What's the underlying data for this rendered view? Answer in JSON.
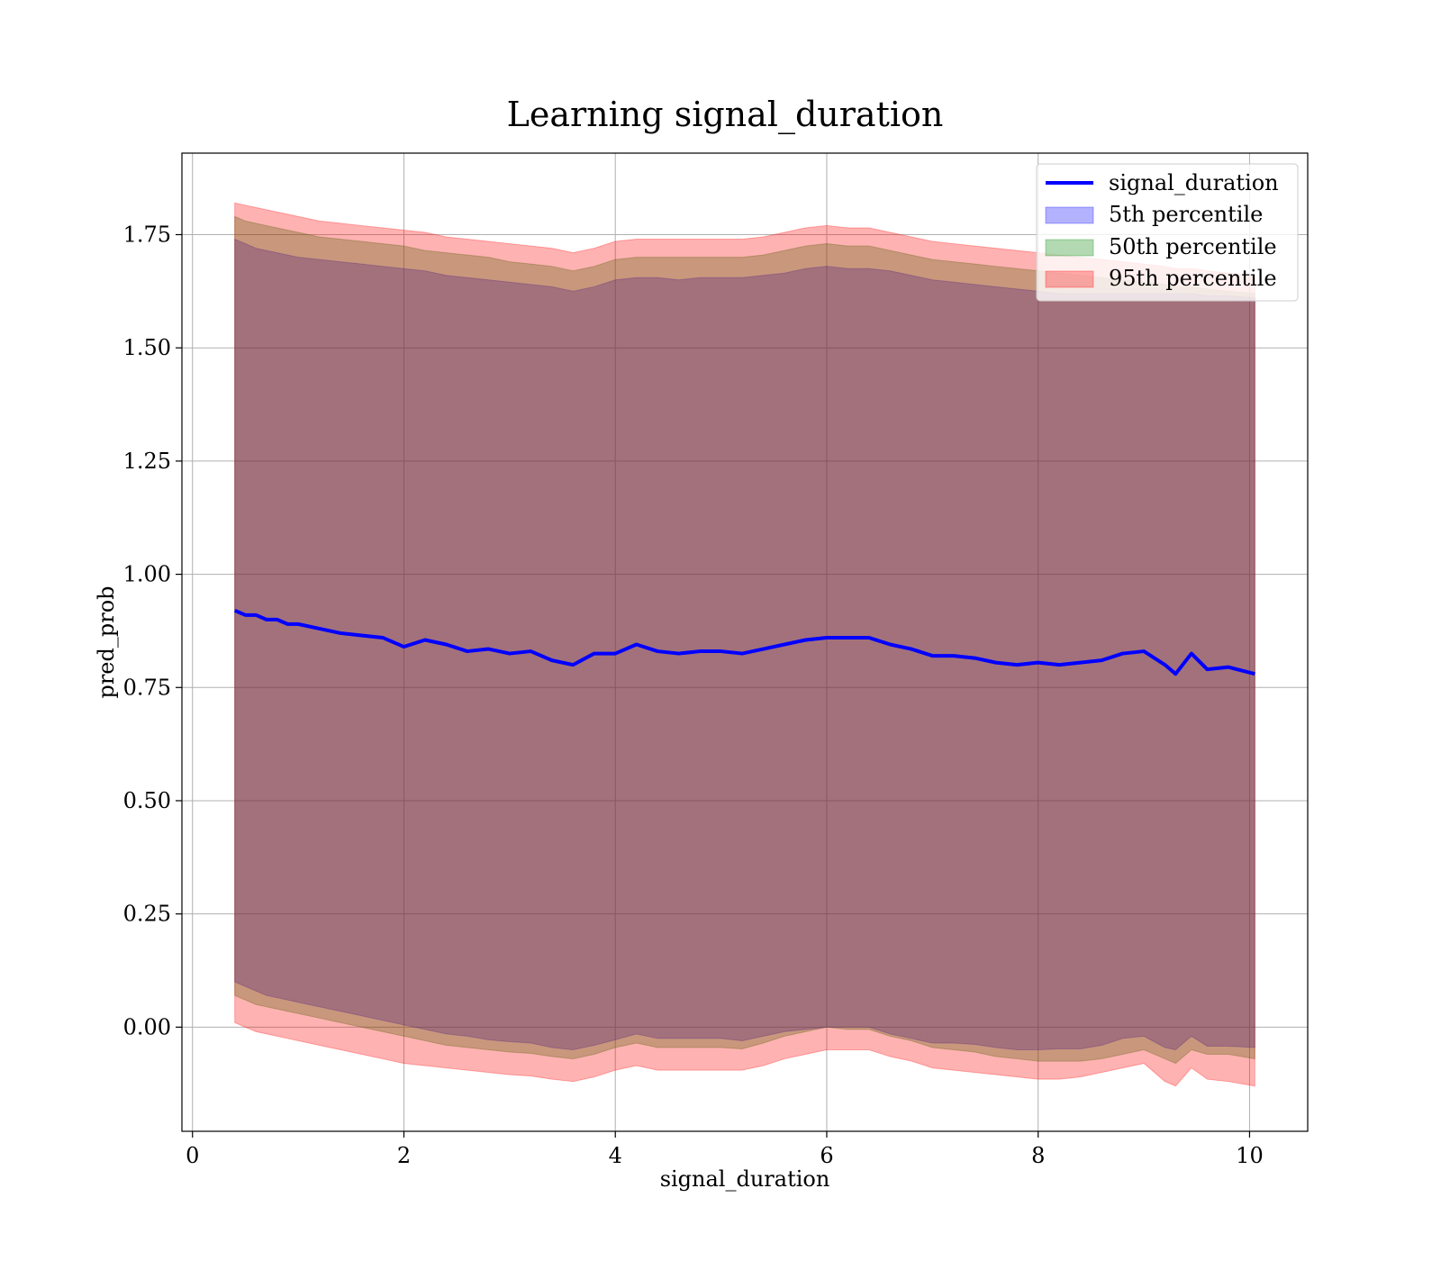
{
  "chart_data": {
    "type": "line",
    "title": "Learning signal_duration",
    "xlabel": "signal_duration",
    "ylabel": "pred_prob",
    "xlim": [
      -0.1,
      10.55
    ],
    "ylim": [
      -0.23,
      1.93
    ],
    "xticks": [
      0,
      2,
      4,
      6,
      8,
      10
    ],
    "xtick_labels": [
      "0",
      "2",
      "4",
      "6",
      "8",
      "10"
    ],
    "yticks": [
      0.0,
      0.25,
      0.5,
      0.75,
      1.0,
      1.25,
      1.5,
      1.75
    ],
    "ytick_labels": [
      "0.00",
      "0.25",
      "0.50",
      "0.75",
      "1.00",
      "1.25",
      "1.50",
      "1.75"
    ],
    "grid": true,
    "legend_position": "top-right",
    "x": [
      0.4,
      0.5,
      0.6,
      0.7,
      0.8,
      0.9,
      1.0,
      1.2,
      1.4,
      1.6,
      1.8,
      2.0,
      2.2,
      2.4,
      2.6,
      2.8,
      3.0,
      3.2,
      3.4,
      3.6,
      3.8,
      4.0,
      4.2,
      4.4,
      4.6,
      4.8,
      5.0,
      5.2,
      5.4,
      5.6,
      5.8,
      6.0,
      6.2,
      6.4,
      6.6,
      6.8,
      7.0,
      7.2,
      7.4,
      7.6,
      7.8,
      8.0,
      8.2,
      8.4,
      8.6,
      8.8,
      9.0,
      9.2,
      9.3,
      9.45,
      9.6,
      9.8,
      10.05
    ],
    "series": [
      {
        "name": "signal_duration",
        "kind": "line",
        "color": "#0000ff",
        "values": [
          0.92,
          0.91,
          0.91,
          0.9,
          0.9,
          0.89,
          0.89,
          0.88,
          0.87,
          0.865,
          0.86,
          0.84,
          0.855,
          0.845,
          0.83,
          0.835,
          0.825,
          0.83,
          0.81,
          0.8,
          0.825,
          0.825,
          0.845,
          0.83,
          0.825,
          0.83,
          0.83,
          0.825,
          0.835,
          0.845,
          0.855,
          0.86,
          0.86,
          0.86,
          0.845,
          0.835,
          0.82,
          0.82,
          0.815,
          0.805,
          0.8,
          0.805,
          0.8,
          0.805,
          0.81,
          0.825,
          0.83,
          0.8,
          0.78,
          0.825,
          0.79,
          0.795,
          0.78
        ]
      },
      {
        "name": "5th percentile",
        "kind": "band",
        "color": "#0000ff",
        "lower": [
          0.1,
          0.09,
          0.08,
          0.07,
          0.065,
          0.06,
          0.055,
          0.045,
          0.035,
          0.025,
          0.015,
          0.005,
          -0.005,
          -0.015,
          -0.02,
          -0.028,
          -0.032,
          -0.035,
          -0.045,
          -0.05,
          -0.04,
          -0.028,
          -0.015,
          -0.025,
          -0.025,
          -0.025,
          -0.025,
          -0.03,
          -0.02,
          -0.01,
          -0.005,
          0.0,
          0.0,
          0.0,
          -0.015,
          -0.025,
          -0.035,
          -0.035,
          -0.038,
          -0.045,
          -0.05,
          -0.05,
          -0.048,
          -0.048,
          -0.04,
          -0.025,
          -0.02,
          -0.045,
          -0.05,
          -0.02,
          -0.042,
          -0.042,
          -0.045
        ],
        "upper": [
          1.74,
          1.73,
          1.72,
          1.715,
          1.71,
          1.705,
          1.7,
          1.695,
          1.69,
          1.685,
          1.68,
          1.675,
          1.67,
          1.66,
          1.655,
          1.65,
          1.645,
          1.64,
          1.635,
          1.625,
          1.635,
          1.65,
          1.655,
          1.655,
          1.65,
          1.655,
          1.655,
          1.655,
          1.66,
          1.665,
          1.675,
          1.68,
          1.675,
          1.675,
          1.67,
          1.66,
          1.65,
          1.645,
          1.64,
          1.635,
          1.63,
          1.625,
          1.62,
          1.62,
          1.62,
          1.62,
          1.62,
          1.62,
          1.62,
          1.62,
          1.615,
          1.615,
          1.61
        ]
      },
      {
        "name": "50th percentile",
        "kind": "band",
        "color": "#008000",
        "lower": [
          0.07,
          0.06,
          0.05,
          0.045,
          0.04,
          0.035,
          0.03,
          0.02,
          0.01,
          0.0,
          -0.01,
          -0.02,
          -0.03,
          -0.04,
          -0.045,
          -0.05,
          -0.055,
          -0.058,
          -0.065,
          -0.07,
          -0.06,
          -0.045,
          -0.035,
          -0.045,
          -0.045,
          -0.045,
          -0.045,
          -0.048,
          -0.035,
          -0.02,
          -0.01,
          0.0,
          -0.005,
          -0.005,
          -0.02,
          -0.03,
          -0.045,
          -0.05,
          -0.055,
          -0.065,
          -0.07,
          -0.075,
          -0.075,
          -0.075,
          -0.07,
          -0.06,
          -0.05,
          -0.07,
          -0.08,
          -0.05,
          -0.06,
          -0.06,
          -0.07
        ],
        "upper": [
          1.79,
          1.78,
          1.775,
          1.77,
          1.765,
          1.76,
          1.755,
          1.745,
          1.74,
          1.735,
          1.73,
          1.725,
          1.715,
          1.71,
          1.705,
          1.7,
          1.69,
          1.685,
          1.68,
          1.67,
          1.68,
          1.695,
          1.7,
          1.7,
          1.7,
          1.7,
          1.7,
          1.7,
          1.705,
          1.715,
          1.725,
          1.73,
          1.725,
          1.725,
          1.715,
          1.705,
          1.695,
          1.69,
          1.685,
          1.68,
          1.675,
          1.67,
          1.665,
          1.66,
          1.655,
          1.65,
          1.645,
          1.64,
          1.635,
          1.635,
          1.63,
          1.625,
          1.62
        ]
      },
      {
        "name": "95th percentile",
        "kind": "band",
        "color": "#ff0000",
        "lower": [
          0.01,
          0.0,
          -0.01,
          -0.015,
          -0.02,
          -0.025,
          -0.03,
          -0.04,
          -0.05,
          -0.06,
          -0.07,
          -0.08,
          -0.085,
          -0.09,
          -0.095,
          -0.1,
          -0.105,
          -0.108,
          -0.115,
          -0.12,
          -0.11,
          -0.095,
          -0.085,
          -0.095,
          -0.095,
          -0.095,
          -0.095,
          -0.095,
          -0.085,
          -0.07,
          -0.06,
          -0.05,
          -0.05,
          -0.05,
          -0.065,
          -0.075,
          -0.09,
          -0.095,
          -0.1,
          -0.105,
          -0.11,
          -0.115,
          -0.115,
          -0.11,
          -0.1,
          -0.09,
          -0.08,
          -0.12,
          -0.13,
          -0.09,
          -0.115,
          -0.12,
          -0.13
        ],
        "upper": [
          1.82,
          1.815,
          1.81,
          1.805,
          1.8,
          1.795,
          1.79,
          1.78,
          1.775,
          1.77,
          1.765,
          1.76,
          1.755,
          1.745,
          1.74,
          1.735,
          1.73,
          1.725,
          1.72,
          1.71,
          1.72,
          1.735,
          1.74,
          1.74,
          1.74,
          1.74,
          1.74,
          1.74,
          1.745,
          1.755,
          1.765,
          1.77,
          1.765,
          1.765,
          1.755,
          1.745,
          1.735,
          1.73,
          1.725,
          1.72,
          1.715,
          1.71,
          1.705,
          1.7,
          1.695,
          1.69,
          1.685,
          1.68,
          1.675,
          1.675,
          1.67,
          1.665,
          1.66
        ]
      }
    ]
  }
}
